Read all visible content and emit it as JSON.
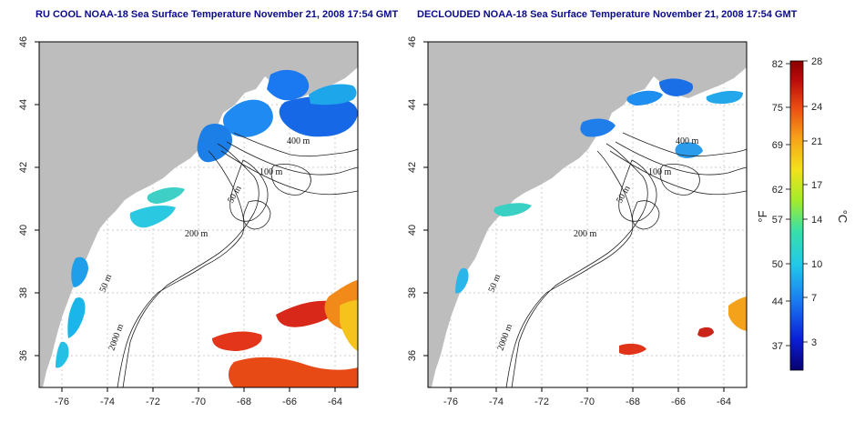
{
  "maps": [
    {
      "title": "RU COOL NOAA-18 Sea Surface Temperature November 21, 2008 17:54 GMT",
      "contour_labels": [
        "400 m",
        "100 m",
        "50 m",
        "200 m",
        "50 m",
        "2000 m"
      ]
    },
    {
      "title": "DECLOUDED NOAA-18 Sea Surface Temperature November 21, 2008 17:54 GMT",
      "contour_labels": [
        "400 m",
        "100 m",
        "50 m",
        "200 m",
        "50 m",
        "2000 m"
      ]
    }
  ],
  "axes": {
    "x_ticks": [
      "-76",
      "-74",
      "-72",
      "-70",
      "-68",
      "-66",
      "-64"
    ],
    "y_ticks": [
      "46",
      "44",
      "42",
      "40",
      "38",
      "36"
    ],
    "x_range": [
      -77,
      -63
    ],
    "y_range": [
      35,
      46
    ]
  },
  "colorbar": {
    "unit_f": "°F",
    "unit_c": "°C",
    "f_ticks": [
      "82",
      "75",
      "69",
      "62",
      "57",
      "50",
      "44",
      "37"
    ],
    "c_ticks": [
      "28",
      "24",
      "21",
      "17",
      "14",
      "10",
      "7",
      "3"
    ],
    "colors": [
      "#08006e",
      "#0a1fd6",
      "#1a78f0",
      "#22c8ea",
      "#38e0a8",
      "#a4ec2a",
      "#f3e11a",
      "#f7a21a",
      "#ea4c12",
      "#b80a0a",
      "#8a0000"
    ]
  },
  "colors": {
    "land": "#bdbdbd",
    "frame": "#000000",
    "title": "#0b0b8a"
  }
}
